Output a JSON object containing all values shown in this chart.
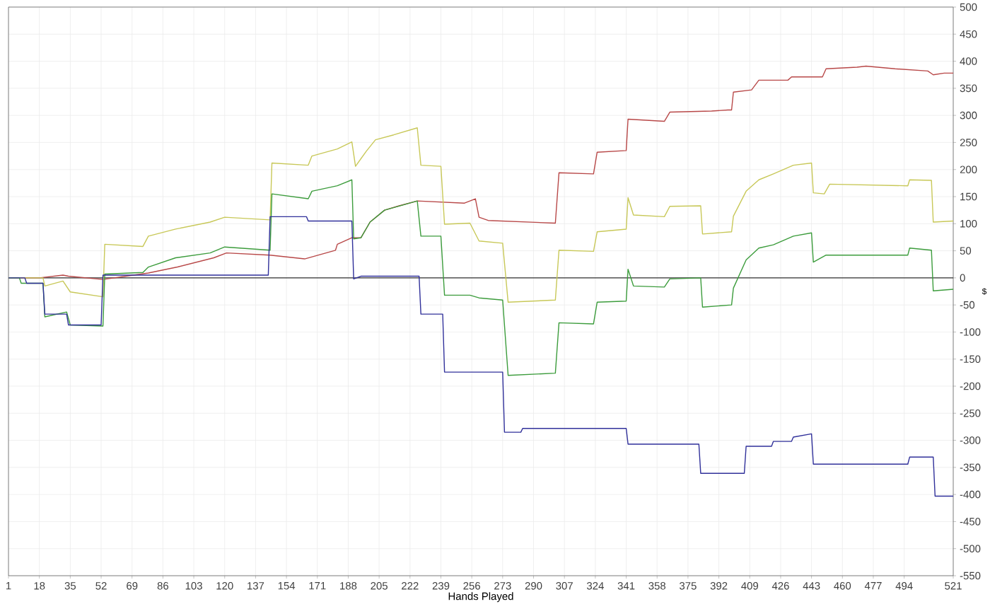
{
  "chart_data": {
    "type": "line",
    "xlabel": "Hands Played",
    "ylabel": "$",
    "xlim": [
      1,
      521
    ],
    "ylim": [
      -550,
      500
    ],
    "xticks": [
      1,
      18,
      35,
      52,
      69,
      86,
      103,
      120,
      137,
      154,
      171,
      188,
      205,
      222,
      239,
      256,
      273,
      290,
      307,
      324,
      341,
      358,
      375,
      392,
      409,
      426,
      443,
      460,
      477,
      494,
      521
    ],
    "yticks": [
      -550,
      -500,
      -450,
      -400,
      -350,
      -300,
      -250,
      -200,
      -150,
      -100,
      -50,
      0,
      50,
      100,
      150,
      200,
      250,
      300,
      350,
      400,
      450,
      500
    ],
    "grid": true,
    "ref_lines": [
      {
        "axis": "y",
        "value": 0,
        "color": "#303030"
      }
    ],
    "series": [
      {
        "color": "#b84848",
        "x": [
          1,
          18,
          31,
          34,
          53,
          78,
          94,
          114,
          121,
          145,
          164,
          181,
          182,
          190,
          195,
          200,
          208,
          216,
          226,
          252,
          258,
          260,
          265,
          302,
          304,
          323,
          325,
          341,
          342,
          362,
          365,
          388,
          397,
          399,
          400,
          410,
          414,
          430,
          432,
          449,
          451,
          468,
          473,
          489,
          507,
          510,
          516,
          521
        ],
        "values": [
          0,
          0,
          5,
          3,
          -3,
          9,
          20,
          37,
          46,
          42,
          35,
          51,
          62,
          74,
          74,
          103,
          125,
          133,
          142,
          138,
          146,
          112,
          106,
          101,
          194,
          192,
          232,
          235,
          293,
          289,
          306,
          308,
          310,
          310,
          343,
          347,
          365,
          365,
          371,
          371,
          386,
          389,
          391,
          386,
          382,
          375,
          378,
          378
        ]
      },
      {
        "color": "#c8c858",
        "x": [
          1,
          20,
          21,
          31,
          35,
          53,
          54,
          75,
          78,
          93,
          112,
          120,
          145,
          146,
          166,
          168,
          182,
          190,
          192,
          198,
          203,
          213,
          226,
          228,
          239,
          241,
          255,
          260,
          273,
          276,
          302,
          304,
          323,
          325,
          341,
          342,
          345,
          362,
          365,
          382,
          383,
          399,
          400,
          407,
          414,
          422,
          433,
          443,
          444,
          450,
          453,
          496,
          497,
          509,
          510,
          521
        ],
        "values": [
          0,
          0,
          -15,
          -6,
          -26,
          -35,
          62,
          58,
          77,
          90,
          103,
          112,
          107,
          212,
          208,
          225,
          238,
          251,
          206,
          234,
          255,
          264,
          277,
          208,
          206,
          99,
          101,
          68,
          64,
          -45,
          -41,
          51,
          49,
          85,
          90,
          148,
          116,
          113,
          132,
          133,
          81,
          85,
          114,
          160,
          181,
          192,
          208,
          212,
          157,
          155,
          173,
          170,
          181,
          180,
          103,
          105
        ]
      },
      {
        "color": "#3c9c3c",
        "x": [
          1,
          7,
          8,
          20,
          21,
          33,
          35,
          53,
          54,
          75,
          78,
          93,
          112,
          120,
          145,
          146,
          166,
          168,
          182,
          190,
          191,
          195,
          200,
          208,
          226,
          228,
          239,
          241,
          255,
          260,
          273,
          276,
          302,
          304,
          323,
          325,
          341,
          342,
          345,
          362,
          365,
          382,
          383,
          399,
          400,
          407,
          414,
          422,
          433,
          443,
          444,
          451,
          496,
          497,
          509,
          510,
          521
        ],
        "values": [
          0,
          0,
          -10,
          -10,
          -72,
          -63,
          -87,
          -89,
          7,
          10,
          20,
          37,
          46,
          57,
          51,
          155,
          146,
          160,
          170,
          181,
          72,
          74,
          103,
          125,
          142,
          77,
          77,
          -32,
          -32,
          -37,
          -41,
          -180,
          -176,
          -83,
          -85,
          -45,
          -43,
          16,
          -15,
          -17,
          -2,
          0,
          -54,
          -50,
          -19,
          33,
          55,
          61,
          77,
          83,
          29,
          42,
          42,
          55,
          51,
          -24,
          -21
        ]
      },
      {
        "color": "#30309a",
        "x": [
          1,
          10,
          11,
          20,
          21,
          33,
          34,
          52,
          53,
          144,
          145,
          165,
          166,
          190,
          191,
          195,
          227,
          228,
          240,
          241,
          273,
          274,
          283,
          284,
          341,
          342,
          381,
          382,
          406,
          407,
          421,
          422,
          432,
          433,
          443,
          444,
          496,
          497,
          510,
          511,
          521
        ],
        "values": [
          0,
          0,
          -10,
          -10,
          -67,
          -67,
          -87,
          -87,
          5,
          5,
          113,
          113,
          105,
          105,
          -2,
          3,
          3,
          -67,
          -67,
          -174,
          -174,
          -285,
          -285,
          -278,
          -278,
          -307,
          -307,
          -361,
          -361,
          -311,
          -311,
          -302,
          -302,
          -294,
          -288,
          -344,
          -344,
          -331,
          -331,
          -403,
          -403
        ]
      }
    ]
  }
}
